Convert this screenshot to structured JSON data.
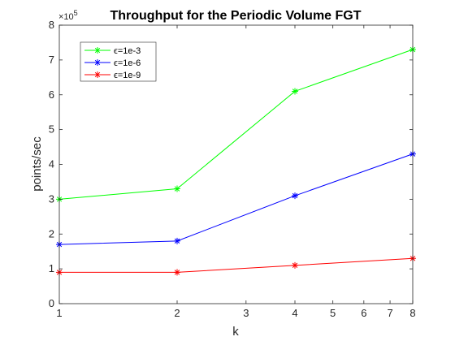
{
  "chart_data": {
    "type": "line",
    "title": "Throughput for the Periodic Volume FGT",
    "xlabel": "k",
    "ylabel": "points/sec",
    "x_scale": "log",
    "xlim": [
      1,
      8
    ],
    "ylim": [
      0,
      8
    ],
    "y_multiplier": "×10",
    "y_multiplier_exponent": "5",
    "x_ticks": [
      1,
      2,
      3,
      4,
      5,
      6,
      7,
      8
    ],
    "x_tick_labels": [
      "1",
      "2",
      "3",
      "4",
      "5",
      "6",
      "7",
      "8"
    ],
    "y_ticks": [
      0,
      1,
      2,
      3,
      4,
      5,
      6,
      7,
      8
    ],
    "y_tick_labels": [
      "0",
      "1",
      "2",
      "3",
      "4",
      "5",
      "6",
      "7",
      "8"
    ],
    "x": [
      1,
      2,
      4,
      8
    ],
    "series": [
      {
        "name": "ϵ=1e-3",
        "color": "#00ff00",
        "marker": "asterisk",
        "values": [
          3.0,
          3.3,
          6.1,
          7.3
        ]
      },
      {
        "name": "ϵ=1e-6",
        "color": "#0000ff",
        "marker": "asterisk",
        "values": [
          1.7,
          1.8,
          3.1,
          4.3
        ]
      },
      {
        "name": "ϵ=1e-9",
        "color": "#ff0000",
        "marker": "asterisk",
        "values": [
          0.9,
          0.9,
          1.1,
          1.3
        ]
      }
    ],
    "legend_position": "top-left",
    "grid": false
  }
}
